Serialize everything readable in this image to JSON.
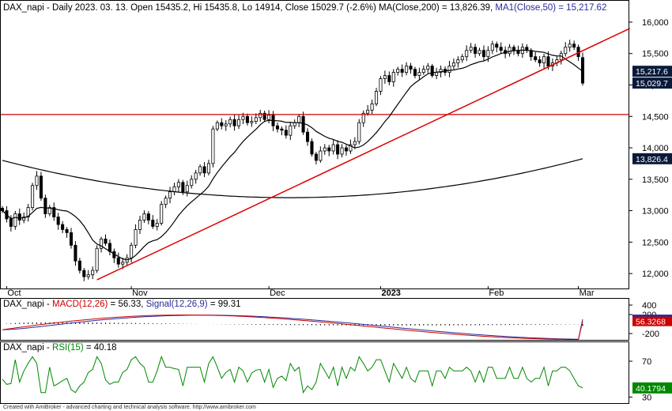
{
  "main": {
    "ticker": "DAX_napi",
    "info": " - Daily 2023. 03. 13. Open 15435.2, Hi 15435.8, Lo 14914, Close 15029.7 (-2.6%) MA(Close,200) = 13,826.39, ",
    "ma50_label": "MA1(Close,50) = 15,217.62",
    "y_ticks": [
      "16,000",
      "15,500",
      "15,000",
      "14,500",
      "14,000",
      "13,500",
      "13,000",
      "12,500",
      "12,000"
    ],
    "x_ticks": [
      {
        "label": "Oct",
        "day": 1
      },
      {
        "label": "Nov",
        "day": 30
      },
      {
        "label": "Dec",
        "day": 62
      },
      {
        "label": "2023",
        "day": 88
      },
      {
        "label": "Feb",
        "day": 113
      },
      {
        "label": "Mar",
        "day": 134
      }
    ],
    "last_ma50": "15,217.6",
    "last_close": "15,029.7",
    "last_ma200": "13,826.4",
    "colors": {
      "axis_badge": "#0a1a3a",
      "horizontal": "#cc0000",
      "trendline": "#dd0000",
      "ma": "#000000"
    }
  },
  "macd": {
    "ticker": "DAX_napi",
    "macd_label": "MACD(12,26)",
    "macd_value": " = 56.33, ",
    "signal_label": "Signal(12,26,9)",
    "signal_value": " = 99.31",
    "y_ticks": [
      "400",
      "200",
      "-200"
    ],
    "badge_signal": "99.3068",
    "badge_macd": "56.3268"
  },
  "rsi": {
    "ticker": "DAX_napi",
    "rsi_label": "RSI(15)",
    "rsi_value": " = 40.18",
    "y_ticks": [
      "70",
      "30"
    ],
    "badge": "40.1794"
  },
  "footer": "Created with AmiBroker - advanced charting and technical analysis software. http://www.amibroker.com",
  "chart_data": {
    "type": "candlestick",
    "title": "DAX_napi - Daily",
    "price_ylim": [
      11800,
      16100
    ],
    "horizontal_line": 14530,
    "trendline": {
      "start": {
        "day": 22,
        "price": 11900
      },
      "end": {
        "day": 146,
        "price": 15900
      }
    },
    "closes": [
      13000,
      12870,
      12750,
      12950,
      12850,
      12900,
      13050,
      13400,
      13550,
      13200,
      12950,
      13050,
      12900,
      12780,
      12700,
      12650,
      12450,
      12200,
      12050,
      11950,
      11980,
      12050,
      12400,
      12550,
      12480,
      12350,
      12250,
      12150,
      12180,
      12250,
      12450,
      12700,
      12850,
      12950,
      12850,
      12750,
      12800,
      13100,
      13200,
      13300,
      13380,
      13450,
      13300,
      13400,
      13500,
      13600,
      13700,
      13600,
      13750,
      14300,
      14400,
      14350,
      14380,
      14450,
      14350,
      14450,
      14500,
      14400,
      14420,
      14480,
      14550,
      14450,
      14520,
      14350,
      14300,
      14280,
      14200,
      14350,
      14400,
      14500,
      14250,
      14100,
      13900,
      13800,
      13950,
      14000,
      13950,
      14050,
      13900,
      14000,
      13950,
      14050,
      14100,
      14400,
      14550,
      14600,
      14700,
      14900,
      15100,
      15150,
      15050,
      15200,
      15250,
      15200,
      15300,
      15250,
      15150,
      15200,
      15250,
      15300,
      15150,
      15200,
      15250,
      15200,
      15300,
      15350,
      15400,
      15450,
      15550,
      15600,
      15500,
      15550,
      15450,
      15550,
      15650,
      15600,
      15550,
      15500,
      15600,
      15550,
      15500,
      15600,
      15550,
      15450,
      15400,
      15350,
      15450,
      15300,
      15350,
      15400,
      15500,
      15600,
      15650,
      15600,
      15450,
      15029.7
    ],
    "ma200": {
      "start": 13800,
      "mid": 13550,
      "end": 13826.39
    },
    "ma50_last": 15217.62,
    "macd_ylim": [
      -300,
      500
    ],
    "rsi_ylim": [
      25,
      85
    ],
    "macd_last": 56.33,
    "signal_last": 99.31,
    "rsi_last": 40.18
  }
}
